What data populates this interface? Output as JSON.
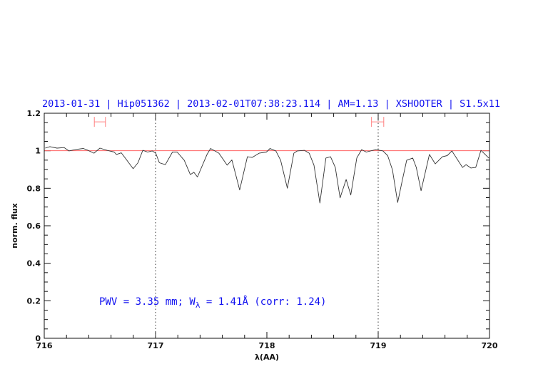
{
  "chart_data": {
    "type": "line",
    "title": "2013-01-31 | Hip051362 | 2013-02-01T07:38:23.114 | AM=1.13 | XSHOOTER | S1.5x11",
    "xlabel": "λ(AA)",
    "ylabel": "norm. flux",
    "xlim": [
      716,
      720
    ],
    "ylim": [
      0,
      1.2
    ],
    "x_ticks": [
      "716",
      "717",
      "718",
      "719",
      "720"
    ],
    "y_ticks": [
      "0",
      "0.2",
      "0.4",
      "0.6",
      "0.8",
      "1",
      "1.2"
    ],
    "grid": false,
    "annotation": {
      "prefix": "PWV = 3.35 mm; W",
      "subscript": "λ",
      "suffix": " = 1.41Å (corr: 1.24)"
    },
    "reference_line": {
      "y": 1.0,
      "color": "#ff6060"
    },
    "vertical_markers": [
      717,
      719
    ],
    "range_markers": [
      {
        "x": [
          716.45,
          716.55
        ],
        "y": 1.154,
        "color": "#ff8080"
      },
      {
        "x": [
          718.94,
          719.05
        ],
        "y": 1.154,
        "color": "#ff8080"
      }
    ],
    "series": [
      {
        "color": "#333333",
        "x": [
          716.008,
          716.051,
          716.115,
          716.179,
          716.222,
          716.287,
          716.351,
          716.393,
          716.447,
          716.5,
          716.564,
          716.628,
          716.649,
          716.692,
          716.735,
          716.799,
          716.842,
          716.885,
          716.928,
          716.97,
          717.002,
          717.034,
          717.088,
          717.152,
          717.194,
          717.258,
          717.312,
          717.344,
          717.376,
          717.462,
          717.494,
          717.569,
          717.643,
          717.686,
          717.756,
          717.825,
          717.867,
          717.931,
          717.996,
          718.028,
          718.081,
          718.124,
          718.184,
          718.242,
          718.274,
          718.338,
          718.38,
          718.423,
          718.476,
          718.53,
          718.572,
          718.615,
          718.658,
          718.712,
          718.754,
          718.808,
          718.851,
          718.893,
          718.979,
          719.043,
          719.085,
          719.128,
          719.175,
          719.214,
          719.256,
          719.31,
          719.342,
          719.385,
          719.46,
          719.513,
          719.577,
          719.62,
          719.662,
          719.758,
          719.79,
          719.833,
          719.876,
          719.923,
          719.994
        ],
        "y": [
          1.014,
          1.022,
          1.014,
          1.017,
          0.999,
          1.007,
          1.012,
          1.002,
          0.987,
          1.014,
          1.002,
          0.993,
          0.98,
          0.989,
          0.955,
          0.904,
          0.936,
          1.002,
          0.993,
          0.999,
          0.987,
          0.936,
          0.926,
          0.993,
          0.993,
          0.949,
          0.873,
          0.885,
          0.86,
          0.98,
          1.012,
          0.987,
          0.923,
          0.951,
          0.791,
          0.968,
          0.964,
          0.987,
          0.993,
          1.012,
          0.999,
          0.949,
          0.8,
          0.987,
          0.999,
          1.002,
          0.987,
          0.923,
          0.721,
          0.961,
          0.968,
          0.911,
          0.749,
          0.847,
          0.764,
          0.961,
          1.006,
          0.993,
          1.006,
          0.999,
          0.974,
          0.898,
          0.724,
          0.835,
          0.949,
          0.961,
          0.911,
          0.787,
          0.98,
          0.93,
          0.968,
          0.974,
          0.999,
          0.911,
          0.926,
          0.908,
          0.911,
          1.002,
          0.961
        ]
      }
    ]
  }
}
